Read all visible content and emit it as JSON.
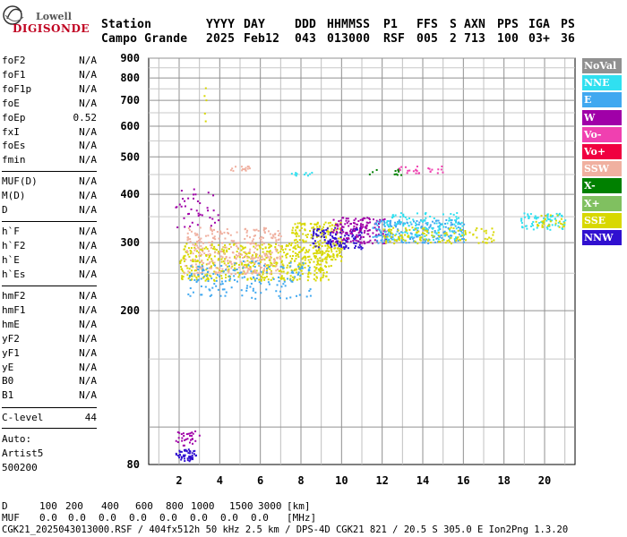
{
  "logo": {
    "top": "Lowell",
    "bottom": "DIGISONDE"
  },
  "header": {
    "labels": [
      "Station",
      "YYYY",
      "DAY",
      "DDD",
      "HHMMSS",
      "P1",
      "FFS",
      "S",
      "AXN",
      "PPS",
      "IGA",
      "PS"
    ],
    "values": [
      "Campo Grande",
      "2025",
      "Feb12",
      "043",
      "013000",
      "RSF",
      "005",
      "2",
      "713",
      "100",
      "03+",
      "36"
    ]
  },
  "params": {
    "group1": [
      {
        "name": "foF2",
        "value": "N/A"
      },
      {
        "name": "foF1",
        "value": "N/A"
      },
      {
        "name": "foF1p",
        "value": "N/A"
      },
      {
        "name": "foE",
        "value": "N/A"
      },
      {
        "name": "foEp",
        "value": "0.52"
      },
      {
        "name": "fxI",
        "value": "N/A"
      },
      {
        "name": "foEs",
        "value": "N/A"
      },
      {
        "name": "fmin",
        "value": "N/A"
      }
    ],
    "group2": [
      {
        "name": "MUF(D)",
        "value": "N/A"
      },
      {
        "name": "M(D)",
        "value": "N/A"
      },
      {
        "name": "D",
        "value": "N/A"
      }
    ],
    "group3": [
      {
        "name": "h`F",
        "value": "N/A"
      },
      {
        "name": "h`F2",
        "value": "N/A"
      },
      {
        "name": "h`E",
        "value": "N/A"
      },
      {
        "name": "h`Es",
        "value": "N/A"
      }
    ],
    "group4": [
      {
        "name": "hmF2",
        "value": "N/A"
      },
      {
        "name": "hmF1",
        "value": "N/A"
      },
      {
        "name": "hmE",
        "value": "N/A"
      },
      {
        "name": "yF2",
        "value": "N/A"
      },
      {
        "name": "yF1",
        "value": "N/A"
      },
      {
        "name": "yE",
        "value": "N/A"
      },
      {
        "name": "B0",
        "value": "N/A"
      },
      {
        "name": "B1",
        "value": "N/A"
      }
    ],
    "clevel": {
      "name": "C-level",
      "value": "44"
    },
    "auto": [
      "Auto:",
      "Artist5",
      "500200"
    ]
  },
  "legend": [
    {
      "label": "NoVal",
      "color": "#909090"
    },
    {
      "label": "NNE",
      "color": "#30e0f0"
    },
    {
      "label": "E",
      "color": "#40a8f0"
    },
    {
      "label": "W",
      "color": "#a000a8"
    },
    {
      "label": "Vo-",
      "color": "#f040b0"
    },
    {
      "label": "Vo+",
      "color": "#f00040"
    },
    {
      "label": "SSW",
      "color": "#f0b0a0"
    },
    {
      "label": "X-",
      "color": "#008000"
    },
    {
      "label": "X+",
      "color": "#80c060"
    },
    {
      "label": "SSE",
      "color": "#d8d800"
    },
    {
      "label": "NNW",
      "color": "#3010d0"
    }
  ],
  "chart_data": {
    "type": "scatter",
    "x_ticks": [
      2,
      4,
      6,
      8,
      10,
      12,
      14,
      16,
      18,
      20
    ],
    "y_ticks": [
      80,
      200,
      300,
      400,
      500,
      600,
      700,
      800,
      900
    ],
    "y_scale": "log",
    "xlim": [
      0.5,
      21.5
    ],
    "ylim": [
      80,
      900
    ],
    "grid": true,
    "clusters": [
      {
        "direction": "NNW",
        "x": [
          1.8,
          2.8
        ],
        "y": [
          82,
          88
        ],
        "count": 50
      },
      {
        "direction": "W",
        "x": [
          1.8,
          3.0
        ],
        "y": [
          90,
          98
        ],
        "count": 30
      },
      {
        "direction": "SSE",
        "x": [
          2.0,
          9.5
        ],
        "y": [
          240,
          300
        ],
        "count": 500
      },
      {
        "direction": "SSW",
        "x": [
          2.2,
          7.0
        ],
        "y": [
          250,
          330
        ],
        "count": 300
      },
      {
        "direction": "E",
        "x": [
          2.4,
          8.5
        ],
        "y": [
          215,
          270
        ],
        "count": 160
      },
      {
        "direction": "SSE",
        "x": [
          7.5,
          10.0
        ],
        "y": [
          270,
          340
        ],
        "count": 200
      },
      {
        "direction": "NNW",
        "x": [
          8.5,
          11.0
        ],
        "y": [
          290,
          330
        ],
        "count": 120
      },
      {
        "direction": "W",
        "x": [
          9.5,
          12.2
        ],
        "y": [
          300,
          350
        ],
        "count": 150
      },
      {
        "direction": "E",
        "x": [
          11.5,
          16.0
        ],
        "y": [
          300,
          345
        ],
        "count": 220
      },
      {
        "direction": "NNE",
        "x": [
          12.0,
          16.0
        ],
        "y": [
          305,
          360
        ],
        "count": 120
      },
      {
        "direction": "SSE",
        "x": [
          12.0,
          17.5
        ],
        "y": [
          300,
          330
        ],
        "count": 120
      },
      {
        "direction": "NNE",
        "x": [
          18.8,
          21.0
        ],
        "y": [
          325,
          360
        ],
        "count": 70
      },
      {
        "direction": "SSE",
        "x": [
          19.5,
          21.0
        ],
        "y": [
          330,
          355
        ],
        "count": 30
      },
      {
        "direction": "SSW",
        "x": [
          4.5,
          5.5
        ],
        "y": [
          460,
          480
        ],
        "count": 15
      },
      {
        "direction": "NNE",
        "x": [
          7.5,
          8.5
        ],
        "y": [
          448,
          458
        ],
        "count": 10
      },
      {
        "direction": "X-",
        "x": [
          11.0,
          13.0
        ],
        "y": [
          450,
          470
        ],
        "count": 12
      },
      {
        "direction": "Vo-",
        "x": [
          12.8,
          15.0
        ],
        "y": [
          455,
          475
        ],
        "count": 25
      },
      {
        "direction": "SSE",
        "x": [
          3.2,
          3.3
        ],
        "y": [
          620,
          790
        ],
        "count": 5
      },
      {
        "direction": "W",
        "x": [
          1.8,
          4.0
        ],
        "y": [
          330,
          420
        ],
        "count": 40
      }
    ]
  },
  "footer": {
    "d_label": "D",
    "muf_label": "MUF",
    "d_values": [
      "100",
      "200",
      "400",
      "600",
      "800",
      "1000",
      "1500",
      "3000",
      "[km]"
    ],
    "muf_values": [
      "0.0",
      "0.0",
      "0.0",
      "0.0",
      "0.0",
      "0.0",
      "0.0",
      "0.0",
      "[MHz]"
    ],
    "info": "CGK21_2025043013000.RSF / 404fx512h 50 kHz 2.5 km / DPS-4D CGK21 821 / 20.5 S 305.0 E Ion2Png 1.3.20"
  }
}
